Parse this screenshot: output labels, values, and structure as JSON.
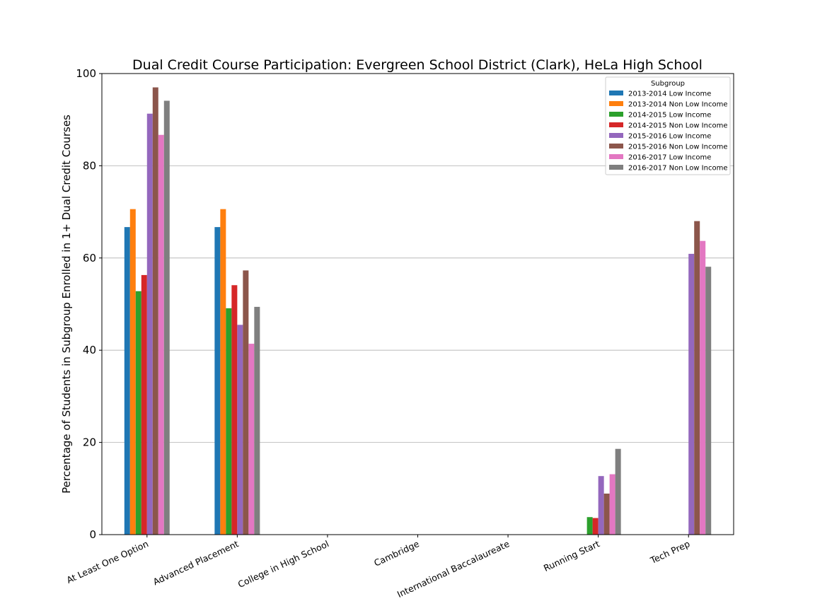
{
  "chart_data": {
    "type": "bar",
    "title": "Dual Credit Course Participation: Evergreen School District (Clark), HeLa High School",
    "xlabel": "",
    "ylabel": "Percentage of Students in Subgroup Enrolled in 1+ Dual Credit Courses",
    "ylim": [
      0,
      100
    ],
    "yticks": [
      "0",
      "20",
      "40",
      "60",
      "80",
      "100"
    ],
    "grid": "horizontal",
    "legend_title": "Subgroup",
    "legend_position": "top-right",
    "categories": [
      "At Least One Option",
      "Advanced Placement",
      "College in High School",
      "Cambridge",
      "International Baccalaureate",
      "Running Start",
      "Tech Prep"
    ],
    "series": [
      {
        "name": "2013-2014 Low Income",
        "color": "#1f77b4",
        "values": [
          66.7,
          66.7,
          0,
          0,
          0,
          0,
          0
        ]
      },
      {
        "name": "2013-2014 Non Low Income",
        "color": "#ff7f0e",
        "values": [
          70.6,
          70.6,
          0,
          0,
          0,
          0,
          0
        ]
      },
      {
        "name": "2014-2015 Low Income",
        "color": "#2ca02c",
        "values": [
          52.8,
          49.1,
          0,
          0,
          0,
          3.8,
          0
        ]
      },
      {
        "name": "2014-2015 Non Low Income",
        "color": "#d62728",
        "values": [
          56.3,
          54.1,
          0,
          0,
          0,
          3.6,
          0
        ]
      },
      {
        "name": "2015-2016 Low Income",
        "color": "#9467bd",
        "values": [
          91.3,
          45.5,
          0,
          0,
          0,
          12.7,
          60.9
        ]
      },
      {
        "name": "2015-2016 Non Low Income",
        "color": "#8c564b",
        "values": [
          97.0,
          57.3,
          0,
          0,
          0,
          8.9,
          68.0
        ]
      },
      {
        "name": "2016-2017 Low Income",
        "color": "#e377c2",
        "values": [
          86.7,
          41.4,
          0,
          0,
          0,
          13.1,
          63.7
        ]
      },
      {
        "name": "2016-2017 Non Low Income",
        "color": "#7f7f7f",
        "values": [
          94.1,
          49.4,
          0,
          0,
          0,
          18.6,
          58.1
        ]
      }
    ]
  }
}
